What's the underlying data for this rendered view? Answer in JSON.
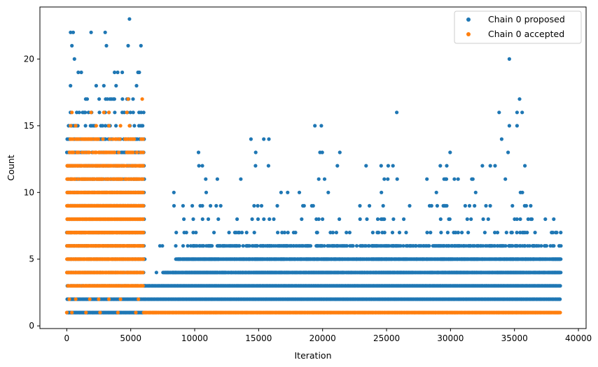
{
  "chart_data": {
    "type": "scatter",
    "title": "",
    "xlabel": "Iteration",
    "ylabel": "Count",
    "xlim": [
      -2100,
      40600
    ],
    "ylim": [
      -0.2,
      23.9
    ],
    "xticks": [
      0,
      5000,
      10000,
      15000,
      20000,
      25000,
      30000,
      35000,
      40000
    ],
    "yticks": [
      0,
      5,
      10,
      15,
      20
    ],
    "xtick_labels": [
      "0",
      "5000",
      "10000",
      "15000",
      "20000",
      "25000",
      "30000",
      "35000",
      "40000"
    ],
    "ytick_labels": [
      "0",
      "5",
      "10",
      "15",
      "20"
    ],
    "legend_position": "top-right",
    "series": [
      {
        "name": "Chain 0 proposed",
        "color": "#1f77b4",
        "marker": "circle",
        "approx_points": {
          "note": "dense band sampling; each entry is [x_start, x_end, count]",
          "bands": [
            [
              0,
              6000,
              1
            ],
            [
              0,
              6000,
              2
            ],
            [
              6000,
              38600,
              2
            ],
            [
              6000,
              38600,
              3
            ],
            [
              7500,
              38600,
              4
            ],
            [
              8500,
              38600,
              5
            ],
            [
              9500,
              37600,
              6
            ]
          ],
          "isolated": [
            [
              300,
              22
            ],
            [
              500,
              22
            ],
            [
              1900,
              22
            ],
            [
              3000,
              22
            ],
            [
              4900,
              23
            ],
            [
              4800,
              21
            ],
            [
              5800,
              21
            ],
            [
              400,
              21
            ],
            [
              3100,
              21
            ],
            [
              600,
              20
            ],
            [
              34600,
              20
            ],
            [
              10300,
              13
            ],
            [
              10600,
              12
            ],
            [
              14400,
              14
            ],
            [
              15400,
              14
            ],
            [
              15800,
              14
            ],
            [
              19400,
              15
            ],
            [
              19900,
              15
            ],
            [
              25800,
              16
            ],
            [
              33800,
              16
            ],
            [
              35200,
              16
            ],
            [
              35600,
              16
            ],
            [
              35400,
              17
            ],
            [
              29200,
              12
            ],
            [
              25500,
              12
            ],
            [
              24600,
              10
            ],
            [
              30300,
              11
            ],
            [
              34000,
              14
            ],
            [
              34600,
              15
            ],
            [
              35200,
              15
            ],
            [
              34500,
              13
            ],
            [
              38000,
              7
            ],
            [
              38300,
              7
            ],
            [
              38500,
              6
            ]
          ]
        }
      },
      {
        "name": "Chain 0 accepted",
        "color": "#ff7f0e",
        "marker": "circle",
        "approx_points": {
          "note": "dense band sampling; each entry is [x_start, x_end, count]",
          "bands": [
            [
              0,
              6000,
              3
            ],
            [
              0,
              6000,
              4
            ],
            [
              0,
              6000,
              5
            ],
            [
              0,
              6000,
              6
            ],
            [
              0,
              6000,
              7
            ],
            [
              0,
              6000,
              8
            ],
            [
              0,
              6000,
              9
            ],
            [
              0,
              6000,
              10
            ],
            [
              0,
              6000,
              11
            ],
            [
              0,
              6000,
              12
            ],
            [
              0,
              6000,
              13
            ],
            [
              0,
              6000,
              14
            ],
            [
              6000,
              38600,
              1
            ]
          ],
          "isolated": [
            [
              0,
              1
            ],
            [
              400,
              1
            ],
            [
              1500,
              1
            ],
            [
              2600,
              1
            ],
            [
              4000,
              1
            ],
            [
              5400,
              1
            ],
            [
              200,
              2
            ],
            [
              700,
              2
            ],
            [
              1800,
              2
            ],
            [
              2500,
              2
            ],
            [
              3300,
              2
            ],
            [
              4200,
              2
            ],
            [
              5600,
              2
            ],
            [
              300,
              15
            ],
            [
              700,
              15
            ],
            [
              2300,
              15
            ],
            [
              3300,
              15
            ],
            [
              4200,
              15
            ],
            [
              4900,
              15
            ],
            [
              400,
              16
            ],
            [
              1900,
              16
            ],
            [
              2900,
              16
            ],
            [
              3300,
              16
            ],
            [
              4700,
              16
            ],
            [
              4800,
              17
            ],
            [
              5900,
              17
            ],
            [
              2500,
              13
            ],
            [
              4600,
              14
            ]
          ]
        }
      }
    ]
  }
}
